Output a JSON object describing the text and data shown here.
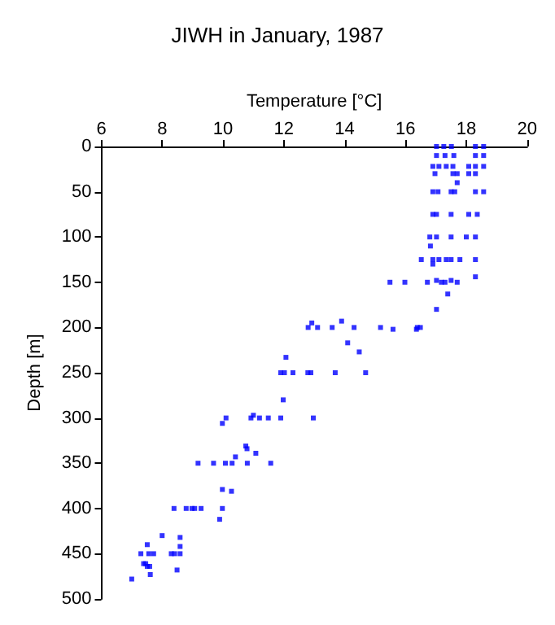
{
  "chart_data": {
    "type": "scatter",
    "title": "JIWH in January, 1987",
    "xlabel": "Temperature [°C]",
    "ylabel": "Depth [m]",
    "xlim": [
      6,
      20
    ],
    "xticks": [
      6,
      8,
      10,
      12,
      14,
      16,
      18,
      20
    ],
    "ylim": [
      500,
      0
    ],
    "yticks": [
      0,
      50,
      100,
      150,
      200,
      250,
      300,
      350,
      400,
      450,
      500
    ],
    "grid": false,
    "marker": "square",
    "series": [
      {
        "color": "#0000ff",
        "x": [
          17.02,
          17.26,
          17.51,
          18.3,
          18.57,
          17.02,
          17.3,
          17.59,
          18.3,
          18.57,
          16.9,
          17.1,
          17.34,
          17.56,
          18.08,
          18.3,
          18.57,
          16.97,
          17.56,
          17.7,
          18.08,
          18.3,
          17.7,
          16.9,
          17.07,
          17.5,
          17.62,
          18.3,
          18.57,
          16.9,
          17.02,
          17.5,
          18.08,
          18.36,
          16.8,
          17.02,
          17.5,
          18.0,
          18.3,
          16.82,
          16.52,
          16.9,
          17.1,
          17.34,
          17.5,
          17.79,
          18.3,
          16.9,
          18.3,
          17.02,
          17.5,
          15.49,
          15.98,
          16.72,
          17.18,
          17.3,
          17.7,
          17.39,
          17.02,
          12.92,
          13.9,
          12.8,
          13.11,
          13.59,
          14.31,
          15.18,
          16.39,
          16.49,
          15.59,
          16.36,
          14.1,
          14.48,
          12.07,
          11.9,
          12.02,
          12.3,
          12.79,
          12.89,
          13.69,
          14.69,
          11.98,
          11.0,
          10.92,
          11.2,
          11.49,
          11.9,
          12.97,
          10.1,
          9.98,
          10.75,
          10.79,
          11.08,
          10.41,
          9.18,
          9.69,
          10.08,
          10.3,
          10.8,
          11.57,
          9.98,
          10.28,
          8.39,
          8.79,
          8.98,
          9.07,
          9.28,
          9.98,
          9.89,
          8.0,
          8.59,
          7.51,
          8.59,
          7.3,
          7.56,
          7.72,
          8.3,
          8.41,
          8.59,
          7.39,
          7.46,
          7.51,
          7.59,
          8.49,
          7.61,
          7.0
        ],
        "values": [
          0,
          0,
          0,
          0,
          0,
          10,
          10,
          10,
          10,
          10,
          22,
          22,
          22,
          22,
          22,
          22,
          22,
          30,
          30,
          30,
          30,
          30,
          40,
          50,
          50,
          50,
          50,
          50,
          50,
          75,
          75,
          75,
          75,
          75,
          100,
          100,
          100,
          100,
          100,
          110,
          125,
          125,
          125,
          125,
          125,
          125,
          125,
          130,
          144,
          148,
          148,
          150,
          150,
          150,
          150,
          150,
          150,
          163,
          180,
          195,
          193,
          200,
          200,
          200,
          200,
          200,
          200,
          200,
          202,
          202,
          217,
          227,
          233,
          250,
          250,
          250,
          250,
          250,
          250,
          250,
          280,
          297,
          300,
          300,
          300,
          300,
          300,
          300,
          306,
          331,
          334,
          339,
          343,
          350,
          350,
          350,
          350,
          350,
          350,
          379,
          381,
          400,
          400,
          400,
          400,
          400,
          400,
          412,
          430,
          432,
          440,
          442,
          450,
          450,
          450,
          450,
          450,
          450,
          461,
          461,
          464,
          464,
          468,
          473,
          478
        ]
      }
    ]
  }
}
